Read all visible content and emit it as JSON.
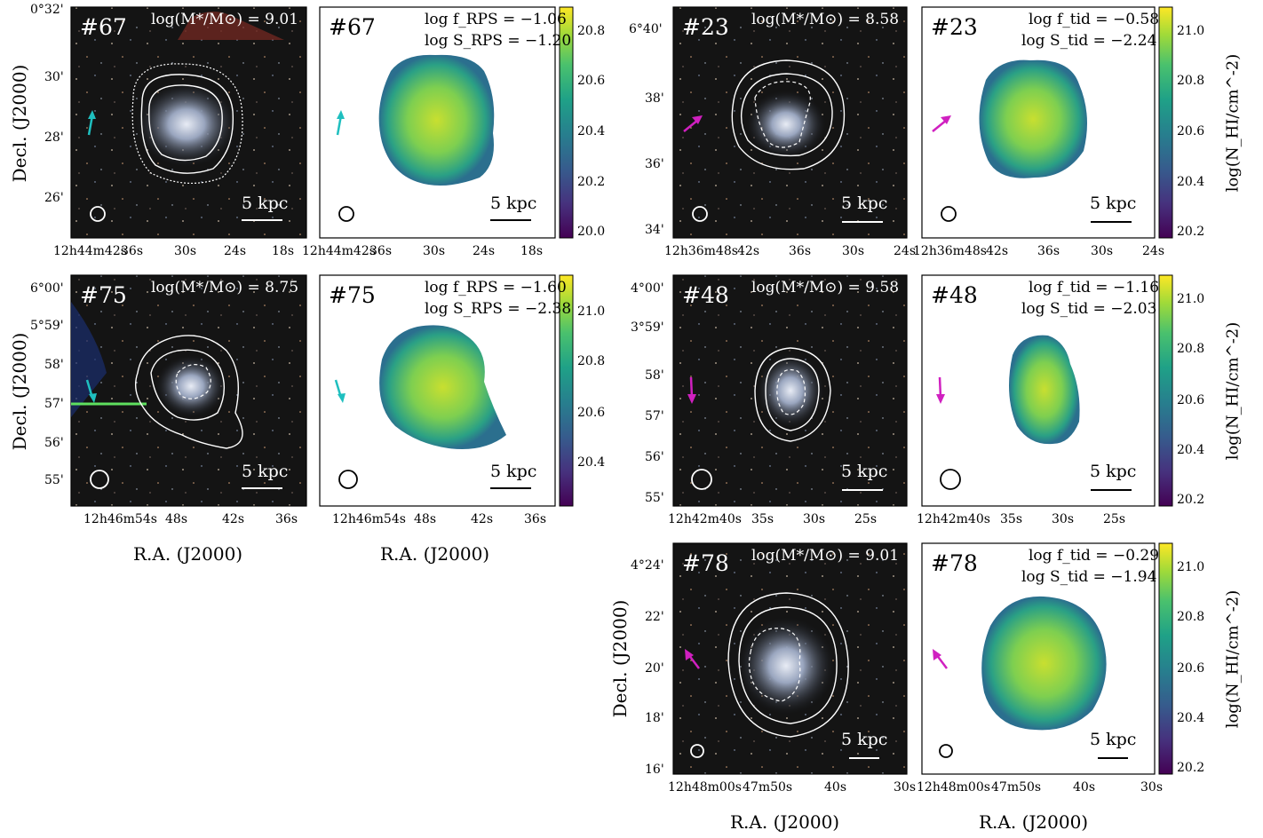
{
  "common": {
    "decl_label": "Decl. (J2000)",
    "ra_label": "R.A. (J2000)",
    "scale_label": "5 kpc",
    "cb_label": "log(N_HI/cm^-2)"
  },
  "panels": [
    {
      "id": "#67",
      "mass": "log(M*/M⊙) = 9.01",
      "f_label": "log f_RPS = −1.06",
      "s_label": "log S_RPS = −1.20",
      "arrow_color": "#1fbfbf",
      "y_ticks": [
        "0°32'",
        "30'",
        "28'",
        "26'"
      ],
      "x_ticks": [
        "12h44m42s",
        "36s",
        "30s",
        "24s",
        "18s"
      ],
      "cb_ticks": [
        "20.8",
        "20.6",
        "20.4",
        "20.2",
        "20.0"
      ]
    },
    {
      "id": "#75",
      "mass": "log(M*/M⊙) = 8.75",
      "f_label": "log f_RPS = −1.60",
      "s_label": "log S_RPS = −2.38",
      "arrow_color": "#1fbfbf",
      "y_ticks": [
        "6°00'",
        "5°59'",
        "58'",
        "57'",
        "56'",
        "55'"
      ],
      "x_ticks": [
        "12h46m54s",
        "48s",
        "42s",
        "36s"
      ],
      "cb_ticks": [
        "21.0",
        "20.8",
        "20.6",
        "20.4"
      ]
    },
    {
      "id": "#23",
      "mass": "log(M*/M⊙) = 8.58",
      "f_label": "log f_tid = −0.58",
      "s_label": "log S_tid = −2.24",
      "arrow_color": "#d020c0",
      "y_ticks": [
        "6°40'",
        "38'",
        "36'",
        "34'"
      ],
      "x_ticks": [
        "12h36m48s",
        "42s",
        "36s",
        "30s",
        "24s"
      ],
      "cb_ticks": [
        "21.0",
        "20.8",
        "20.6",
        "20.4",
        "20.2"
      ]
    },
    {
      "id": "#48",
      "mass": "log(M*/M⊙) = 9.58",
      "f_label": "log f_tid = −1.16",
      "s_label": "log S_tid = −2.03",
      "arrow_color": "#d020c0",
      "y_ticks": [
        "4°00'",
        "3°59'",
        "58'",
        "57'",
        "56'",
        "55'"
      ],
      "x_ticks": [
        "12h42m40s",
        "35s",
        "30s",
        "25s"
      ],
      "cb_ticks": [
        "21.0",
        "20.8",
        "20.6",
        "20.4",
        "20.2"
      ]
    },
    {
      "id": "#78",
      "mass": "log(M*/M⊙) = 9.01",
      "f_label": "log f_tid = −0.29",
      "s_label": "log S_tid = −1.94",
      "arrow_color": "#d020c0",
      "y_ticks": [
        "4°24'",
        "22'",
        "20'",
        "18'",
        "16'"
      ],
      "x_ticks": [
        "12h48m00s",
        "47m50s",
        "40s",
        "30s"
      ],
      "cb_ticks": [
        "21.0",
        "20.8",
        "20.6",
        "20.4",
        "20.2"
      ]
    }
  ]
}
